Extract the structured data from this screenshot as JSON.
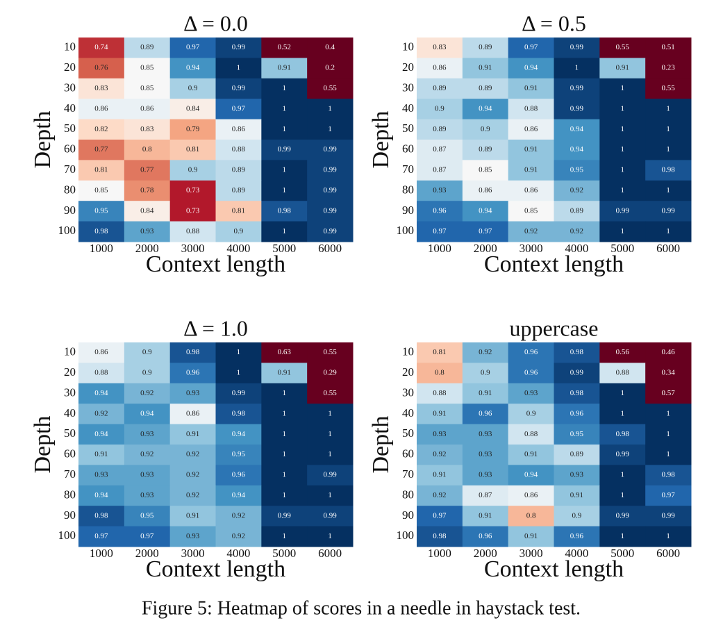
{
  "chart_data": [
    {
      "type": "heatmap",
      "title": "Δ = 0.0",
      "x_label": "Context length",
      "y_label": "Depth",
      "x": [
        1000,
        2000,
        3000,
        4000,
        5000,
        6000
      ],
      "y": [
        10,
        20,
        30,
        40,
        50,
        60,
        70,
        80,
        90,
        100
      ],
      "colormap": "RdBu",
      "vlim": [
        0.7,
        1.0
      ],
      "values": [
        [
          0.74,
          0.89,
          0.97,
          0.99,
          0.52,
          0.4
        ],
        [
          0.76,
          0.85,
          0.94,
          1,
          0.91,
          0.2
        ],
        [
          0.83,
          0.85,
          0.9,
          0.99,
          1,
          0.55
        ],
        [
          0.86,
          0.86,
          0.84,
          0.97,
          1,
          1
        ],
        [
          0.82,
          0.83,
          0.79,
          0.86,
          1,
          1
        ],
        [
          0.77,
          0.8,
          0.81,
          0.88,
          0.99,
          0.99
        ],
        [
          0.81,
          0.77,
          0.9,
          0.89,
          1,
          0.99
        ],
        [
          0.85,
          0.78,
          0.73,
          0.89,
          1,
          0.99
        ],
        [
          0.95,
          0.84,
          0.73,
          0.81,
          0.98,
          0.99
        ],
        [
          0.98,
          0.93,
          0.88,
          0.9,
          1,
          0.99
        ]
      ]
    },
    {
      "type": "heatmap",
      "title": "Δ = 0.5",
      "x_label": "Context length",
      "y_label": "Depth",
      "x": [
        1000,
        2000,
        3000,
        4000,
        5000,
        6000
      ],
      "y": [
        10,
        20,
        30,
        40,
        50,
        60,
        70,
        80,
        90,
        100
      ],
      "colormap": "RdBu",
      "vlim": [
        0.7,
        1.0
      ],
      "values": [
        [
          0.83,
          0.89,
          0.97,
          0.99,
          0.55,
          0.51
        ],
        [
          0.86,
          0.91,
          0.94,
          1,
          0.91,
          0.23
        ],
        [
          0.89,
          0.89,
          0.91,
          0.99,
          1,
          0.55
        ],
        [
          0.9,
          0.94,
          0.88,
          0.99,
          1,
          1
        ],
        [
          0.89,
          0.9,
          0.86,
          0.94,
          1,
          1
        ],
        [
          0.87,
          0.89,
          0.91,
          0.94,
          1,
          1
        ],
        [
          0.87,
          0.85,
          0.91,
          0.95,
          1,
          0.98
        ],
        [
          0.93,
          0.86,
          0.86,
          0.92,
          1,
          1
        ],
        [
          0.96,
          0.94,
          0.85,
          0.89,
          0.99,
          0.99
        ],
        [
          0.97,
          0.97,
          0.92,
          0.92,
          1,
          1
        ]
      ]
    },
    {
      "type": "heatmap",
      "title": "Δ = 1.0",
      "x_label": "Context length",
      "y_label": "Depth",
      "x": [
        1000,
        2000,
        3000,
        4000,
        5000,
        6000
      ],
      "y": [
        10,
        20,
        30,
        40,
        50,
        60,
        70,
        80,
        90,
        100
      ],
      "colormap": "RdBu",
      "vlim": [
        0.7,
        1.0
      ],
      "values": [
        [
          0.86,
          0.9,
          0.98,
          1,
          0.63,
          0.55
        ],
        [
          0.88,
          0.9,
          0.96,
          1,
          0.91,
          0.29
        ],
        [
          0.94,
          0.92,
          0.93,
          0.99,
          1,
          0.55
        ],
        [
          0.92,
          0.94,
          0.86,
          0.98,
          1,
          1
        ],
        [
          0.94,
          0.93,
          0.91,
          0.94,
          1,
          1
        ],
        [
          0.91,
          0.92,
          0.92,
          0.95,
          1,
          1
        ],
        [
          0.93,
          0.93,
          0.92,
          0.96,
          1,
          0.99
        ],
        [
          0.94,
          0.93,
          0.92,
          0.94,
          1,
          1
        ],
        [
          0.98,
          0.95,
          0.91,
          0.92,
          0.99,
          0.99
        ],
        [
          0.97,
          0.97,
          0.93,
          0.92,
          1,
          1
        ]
      ]
    },
    {
      "type": "heatmap",
      "title": "uppercase",
      "x_label": "Context length",
      "y_label": "Depth",
      "x": [
        1000,
        2000,
        3000,
        4000,
        5000,
        6000
      ],
      "y": [
        10,
        20,
        30,
        40,
        50,
        60,
        70,
        80,
        90,
        100
      ],
      "colormap": "RdBu",
      "vlim": [
        0.7,
        1.0
      ],
      "values": [
        [
          0.81,
          0.92,
          0.96,
          0.98,
          0.56,
          0.46
        ],
        [
          0.8,
          0.9,
          0.96,
          0.99,
          0.88,
          0.34
        ],
        [
          0.88,
          0.91,
          0.93,
          0.98,
          1,
          0.57
        ],
        [
          0.91,
          0.96,
          0.9,
          0.96,
          1,
          1
        ],
        [
          0.93,
          0.93,
          0.88,
          0.95,
          0.98,
          1
        ],
        [
          0.92,
          0.93,
          0.91,
          0.89,
          0.99,
          1
        ],
        [
          0.91,
          0.93,
          0.94,
          0.93,
          1,
          0.98
        ],
        [
          0.92,
          0.87,
          0.86,
          0.91,
          1,
          0.97
        ],
        [
          0.97,
          0.91,
          0.8,
          0.9,
          0.99,
          0.99
        ],
        [
          0.98,
          0.96,
          0.91,
          0.96,
          1,
          1
        ]
      ]
    }
  ],
  "caption": "Figure 5: Heatmap of scores in a needle in haystack test."
}
